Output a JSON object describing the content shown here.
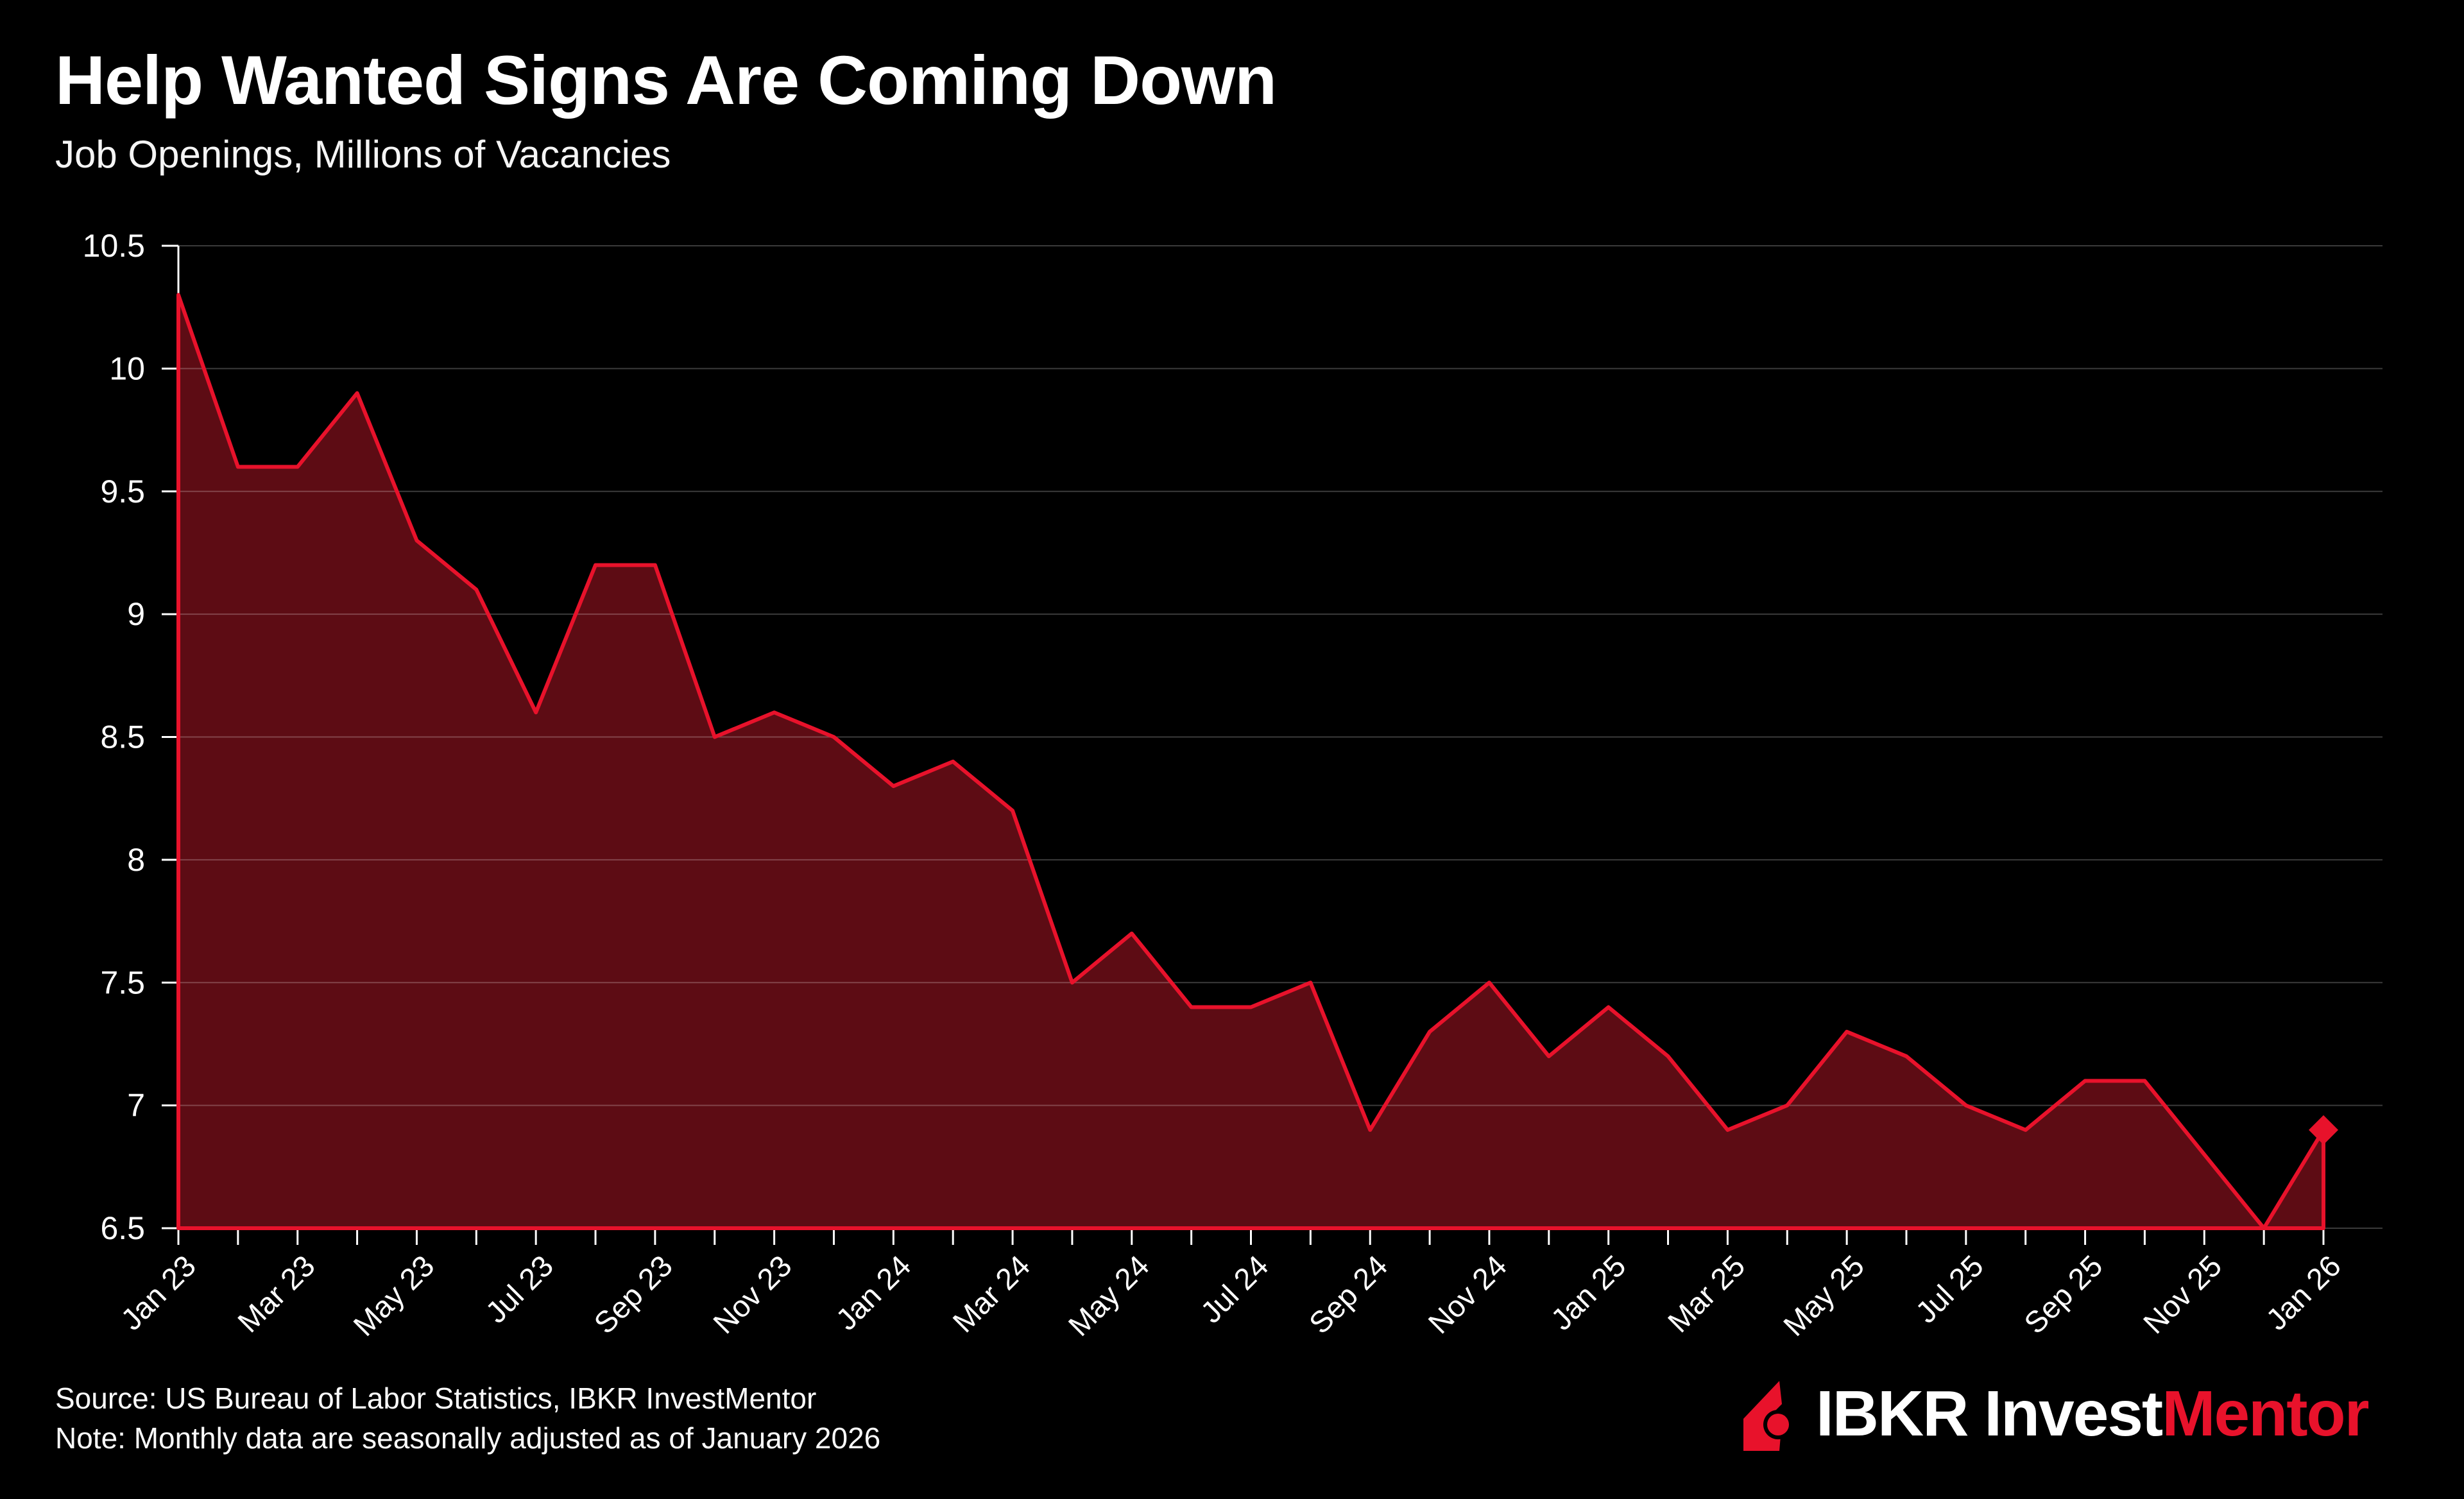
{
  "header": {
    "title": "Help Wanted Signs Are Coming Down",
    "subtitle": "Job Openings, Millions of Vacancies"
  },
  "footer": {
    "source": "Source: US Bureau of Labor Statistics, IBKR InvestMentor",
    "note": "Note: Monthly data are seasonally adjusted as of January 2026"
  },
  "logo": {
    "text_white": "IBKR Invest",
    "text_red": "Mentor"
  },
  "colors": {
    "background": "#000000",
    "line": "#e8122b",
    "fill": "#5d0c14",
    "grid": "rgba(255,255,255,0.23)",
    "axis": "#ffffff",
    "text": "#ffffff",
    "logo_red": "#e8122b"
  },
  "chart_data": {
    "type": "area",
    "title": "Help Wanted Signs Are Coming Down",
    "xlabel": "",
    "ylabel": "Job Openings, Millions of Vacancies",
    "ylim": [
      6.5,
      10.5
    ],
    "ytick_step": 0.5,
    "ytick_labels": [
      "6.5",
      "7",
      "7.5",
      "8",
      "8.5",
      "9",
      "9.5",
      "10",
      "10.5"
    ],
    "grid": "horizontal",
    "legend": "none",
    "marker": "diamond-on-last-point",
    "xtick_every": 2,
    "x": [
      "Jan 23",
      "Feb 23",
      "Mar 23",
      "Apr 23",
      "May 23",
      "Jun 23",
      "Jul 23",
      "Aug 23",
      "Sep 23",
      "Oct 23",
      "Nov 23",
      "Dec 23",
      "Jan 24",
      "Feb 24",
      "Mar 24",
      "Apr 24",
      "May 24",
      "Jun 24",
      "Jul 24",
      "Aug 24",
      "Sep 24",
      "Oct 24",
      "Nov 24",
      "Dec 24",
      "Jan 25",
      "Feb 25",
      "Mar 25",
      "Apr 25",
      "May 25",
      "Jun 25",
      "Jul 25",
      "Aug 25",
      "Sep 25",
      "Oct 25",
      "Nov 25",
      "Dec 25",
      "Jan 26"
    ],
    "values": [
      10.3,
      9.6,
      9.6,
      9.9,
      9.3,
      9.1,
      8.6,
      9.2,
      9.2,
      8.5,
      8.6,
      8.5,
      8.3,
      8.4,
      8.2,
      7.5,
      7.7,
      7.4,
      7.4,
      7.5,
      6.9,
      7.3,
      7.5,
      7.2,
      7.4,
      7.2,
      6.9,
      7.0,
      7.3,
      7.2,
      7.0,
      6.9,
      7.1,
      7.1,
      6.8,
      6.5,
      6.9
    ]
  }
}
